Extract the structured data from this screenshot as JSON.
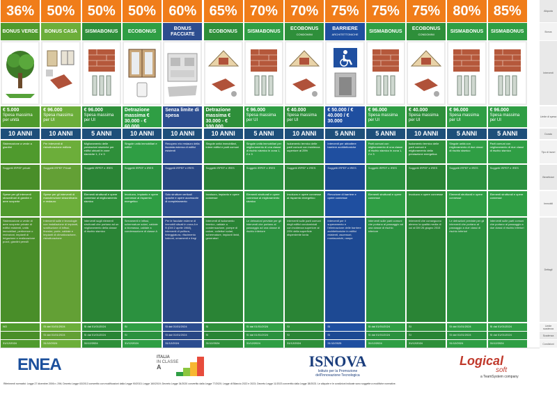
{
  "row_labels": [
    "Aliquota",
    "Bonus",
    "Interventi",
    "Limite di spesa",
    "Durata",
    "Tipo di lavori",
    "Beneficiari",
    "Immobili",
    "Dettagli",
    "Limite scadenza",
    "Scadenza",
    "Condizioni"
  ],
  "columns": [
    {
      "pct": "36%",
      "name": "BONUS VERDE",
      "sub": "",
      "amount": "€ 5.000",
      "amount_note": "Spesa massima per unità",
      "duration": "10 ANNI",
      "icon": "tree-icon",
      "color": "#4f9a2d",
      "t1": "Sistemazione a verde a giardini",
      "t2": "Soggetti IRPEF privati",
      "t3": "Spese per gli interventi straordinari di giardini e aree scoperte",
      "t4": "Sistemazione a verde di aree scoperte private di edifici esistenti, unità immobiliari, pertinenze o recinzioni, impianti di irrigazione e realizzazione pozzi, giardini pensili",
      "t5": "NO",
      "t6": "",
      "t7": "31/12/2024"
    },
    {
      "pct": "50%",
      "name": "BONUS CASA",
      "sub": "",
      "amount": "€ 96.000",
      "amount_note": "Spesa massima per UI",
      "duration": "10 ANNI",
      "icon": "house-items-icon",
      "color": "#6cae3a",
      "t1": "Per interventi di ristrutturazione edilizia",
      "t2": "Soggetti IRPEF Privati",
      "t3": "Spese per gli interventi di manutenzione straordinaria e restauro",
      "t4": "Interventi sulle e tecnologie con installazione di impianti, sostituzione di infissi, finestre, porte, caldaie e impianti di climatizzazione, ristrutturazione",
      "t5": "SI dal 01/01/2024",
      "t6": "SI dal 01/01/2024",
      "t7": "31/12/2024"
    },
    {
      "pct": "50%",
      "name": "SISMABONUS",
      "sub": "",
      "amount": "€ 96.000",
      "amount_note": "Spesa massima per UI",
      "duration": "5 ANNI",
      "icon": "brick-wall-icon",
      "color": "#2e8f3a",
      "t1": "Miglioramento delle prestazioni sismiche per edifici ubicati in zone sismiche 1, 2 e 3",
      "t2": "Soggetti IRPEF e IRES",
      "t3": "Elementi strutturali e opere connesse al miglioramento sismico",
      "t4": "Interventi sugli elementi strutturali che portano ad un miglioramento della classe di rischio sismico",
      "t5": "SI dal 01/01/2024",
      "t6": "SI dal 01/01/2024",
      "t7": "31/12/2024"
    },
    {
      "pct": "50%",
      "name": "ECOBONUS",
      "sub": "",
      "amount": "Detrazione massima € 30.000 - € 60.000",
      "amount_note": "",
      "duration": "10 ANNI",
      "icon": "window-icon",
      "color": "#2f9e44",
      "t1": "Singole unità immobiliari e edifici",
      "t2": "Soggetti IRPEF e IRES",
      "t3": "Involucro, impianto e opere connesse al risparmio energetico",
      "t4": "Serramenti e infissi, schermature solari, caldaie a biomassa, caldaie a condensazione di classe A",
      "t5": "SI",
      "t6": "SI",
      "t7": "31/12/2024"
    },
    {
      "pct": "60%",
      "name": "BONUS FACCIATE",
      "sub": "",
      "amount": "Senza limite di spesa",
      "amount_note": "",
      "duration": "10 ANNI",
      "icon": "facade-icon",
      "color": "#2c4d8f",
      "t1": "Recupero e/o restauro della facciata esterna di edifici esistenti",
      "t2": "Soggetti IRPEF e IRES",
      "t3": "Solo strutture verticali opache e opere accessorie di completamento",
      "t4": "Per le facciate esterne di immobili situati in zona A e B (DM 2 aprile 1968), interventi di pulitura, tinteggiatura, rifacimento balconi, ornamenti e fregi",
      "t5": "SI dal 01/01/2024",
      "t6": "SI dal 01/01/2024",
      "t7": "31/12/2024"
    },
    {
      "pct": "65%",
      "name": "ECOBONUS",
      "sub": "",
      "amount": "Detrazione massima € 30.000 - € 100.000",
      "amount_note": "",
      "duration": "10 ANNI",
      "icon": "roof-window-icon",
      "color": "#2e8f3a",
      "t1": "Singole unità immobiliari, intere edifici e parti comuni",
      "t2": "Soggetti IRPEF e IRES",
      "t3": "Involucro, impianto e opere connesse",
      "t4": "Interventi di isolamento termico, caldaie a condensazione, pompe di calore, collettori solari, schermature, impianti ibridi, generatori",
      "t5": "SI",
      "t6": "SI",
      "t7": "31/12/2024"
    },
    {
      "pct": "70%",
      "name": "SISMABONUS",
      "sub": "",
      "amount": "€ 96.000",
      "amount_note": "Spesa massima per UI",
      "duration": "5 ANNI",
      "icon": "brick-wall-icon",
      "color": "#2f9e44",
      "t1": "Singole unità immobiliari per miglioramento di una classe di rischio sismico in zona 1, 2 e 3",
      "t2": "Soggetti IRPEF e IRES",
      "t3": "Elementi strutturali e opere connesse al miglioramento sismico",
      "t4": "Le detrazioni previste per gli interventi che portano al passaggio ad una classe di rischio inferiore",
      "t5": "SI dal 01/01/2024",
      "t6": "SI dal 01/01/2024",
      "t7": "31/12/2024"
    },
    {
      "pct": "70%",
      "name": "ECOBONUS",
      "sub": "CONDOMINI",
      "amount": "€ 40.000",
      "amount_note": "Spesa massima per UI",
      "duration": "10 ANNI",
      "icon": "roof-window-icon",
      "color": "#2e8f3a",
      "t1": "Isolamento termico delle parti comuni con incidenza superiore al 25%",
      "t2": "Soggetti IRPEF e IRES",
      "t3": "Involucro e opere connesse al risparmio energetico",
      "t4": "Interventi sulle parti comuni degli edifici condominiali con incidenza superiore al 25% della superficie disperdente lorda",
      "t5": "SI",
      "t6": "SI",
      "t7": "31/12/2024"
    },
    {
      "pct": "75%",
      "name": "BARRIERE",
      "sub": "ARCHITETTONICHE",
      "amount": "€ 50.000 / € 40.000 / € 30.000",
      "amount_note": "",
      "duration": "5 ANNI",
      "icon": "wheelchair-icon",
      "color": "#1f4fa0",
      "t1": "Interventi per abbattere barriere architettoniche",
      "t2": "Soggetti IRPEF e IRES",
      "t3": "Rimozione di barriere e opere connesse",
      "t4": "Interventi per il superamento e l'eliminazione delle barriere architettoniche in edifici esistenti, ascensori, montacarichi, rampe",
      "t5": "SI",
      "t6": "SI",
      "t7": "31/12/2025"
    },
    {
      "pct": "75%",
      "name": "SISMABONUS",
      "sub": "",
      "amount": "€ 96.000",
      "amount_note": "Spesa massima per UI",
      "duration": "5 ANNI",
      "icon": "brick-wall-icon",
      "color": "#2f9e44",
      "t1": "Parti comuni con miglioramento di una classe di rischio sismico in zona 1, 2 e 3",
      "t2": "Soggetti IRPEF e IRES",
      "t3": "Elementi strutturali e opere connesse",
      "t4": "Interventi sulle parti comuni che portano al passaggio ad una classe di rischio inferiore",
      "t5": "SI dal 01/01/2024",
      "t6": "SI dal 01/01/2024",
      "t7": "31/12/2024"
    },
    {
      "pct": "75%",
      "name": "ECOBONUS",
      "sub": "CONDOMINI",
      "amount": "€ 40.000",
      "amount_note": "Spesa massima per UI",
      "duration": "10 ANNI",
      "icon": "roof-window-icon",
      "color": "#2e8f3a",
      "t1": "Isolamento termico delle parti comuni e miglioramento della prestazione energetica",
      "t2": "Soggetti IRPEF e IRES",
      "t3": "Involucro e opere connesse",
      "t4": "Interventi che conseguono almeno la qualità media di cui al DM 26 giugno 2015",
      "t5": "SI",
      "t6": "SI",
      "t7": "31/12/2024"
    },
    {
      "pct": "80%",
      "name": "SISMABONUS",
      "sub": "",
      "amount": "€ 96.000",
      "amount_note": "Spesa massima per UI",
      "duration": "5 ANNI",
      "icon": "brick-wall-icon",
      "color": "#2f9e44",
      "t1": "Singole unità con miglioramento di due classi di rischio sismico",
      "t2": "Soggetti IRPEF e IRES",
      "t3": "Elementi strutturali e opere connesse",
      "t4": "Le detrazioni previste per gli interventi che portano al passaggio a due classi di rischio inferiori",
      "t5": "SI dal 01/01/2024",
      "t6": "SI dal 01/01/2024",
      "t7": "31/12/2024"
    },
    {
      "pct": "85%",
      "name": "SISMABONUS",
      "sub": "",
      "amount": "€ 96.000",
      "amount_note": "Spesa massima per UI",
      "duration": "5 ANNI",
      "icon": "brick-wall-icon",
      "color": "#2f9e44",
      "t1": "Parti comuni con miglioramento di due classi di rischio sismico",
      "t2": "Soggetti IRPEF e IRES",
      "t3": "Elementi strutturali e opere connesse",
      "t4": "Interventi sulle parti comuni che portano al passaggio a due classi di rischio inferiori",
      "t5": "SI dal 01/01/2024",
      "t6": "SI dal 01/01/2024",
      "t7": "31/12/2024"
    }
  ],
  "footer": {
    "enea": "ENEA",
    "italia_line1": "ITALIA",
    "italia_line2": "IN CLASSE",
    "italia_line3": "A",
    "isnova_title": "ISNOVA",
    "isnova_sub1": "Istituto per la Promozione",
    "isnova_sub2": "dell'Innovazione Tecnologica",
    "logical": "Logical",
    "soft": "soft",
    "logical_sub": "a TeamSystem company",
    "legal": "Riferimenti normativi: Legge 27 dicembre 2006 n. 296; Decreto Legge 63/2013 convertito con modificazioni dalla Legge 90/2013; Legge 160/2019; Decreto Legge 34/2020 convertito dalla Legge 77/2020; Legge di Bilancio 2022 e 2023; Decreto Legge 11/2023 convertito dalla Legge 38/2023. Le aliquote e le condizioni indicate sono soggette a modifiche normative."
  },
  "colors": {
    "orange": "#f07d1a",
    "navy": "#1e4f7a",
    "green": "#2f9e44"
  }
}
